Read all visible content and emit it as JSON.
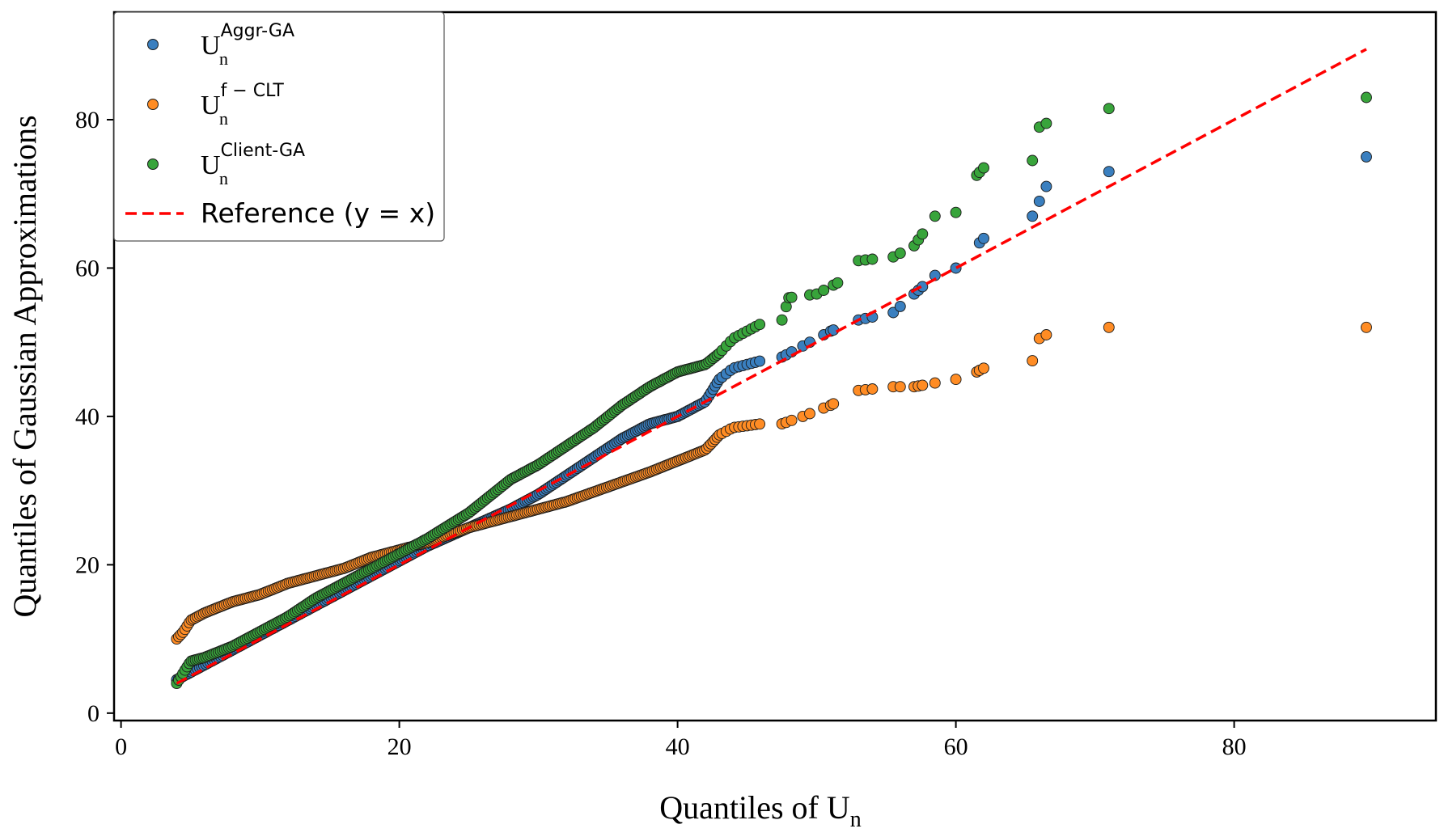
{
  "chart_data": {
    "type": "scatter",
    "title": "",
    "xlabel": "Quantiles of U",
    "xlabel_sub": "n",
    "ylabel": "Quantiles of Gaussian Approximations",
    "xlim": [
      -0.5,
      94.5
    ],
    "ylim": [
      -1,
      94.5
    ],
    "xticks": [
      "0",
      "20",
      "40",
      "60",
      "80"
    ],
    "yticks": [
      "0",
      "20",
      "40",
      "60",
      "80"
    ],
    "grid": false,
    "legend_position": "top-left",
    "reference_line": {
      "name": "Reference (y = x)",
      "label_text": "Reference (y = x)",
      "x": [
        4,
        89.5
      ],
      "y": [
        4,
        89.5
      ],
      "color": "#ff0000",
      "style": "dashed"
    },
    "series": [
      {
        "name": "U_n^Aggr-GA",
        "label_base": "U",
        "label_sup": "Aggr-GA",
        "label_sub": "n",
        "color": "#3a7fbf",
        "anchors_x": [
          4,
          5,
          7,
          10,
          12,
          15,
          18,
          20,
          22,
          25,
          28,
          30,
          32,
          34,
          36,
          38,
          40,
          42,
          43,
          44,
          46,
          47.5,
          49,
          51,
          53,
          55.5,
          57,
          58.5,
          60,
          62,
          65.5,
          66,
          66.5,
          71,
          89.5
        ],
        "anchors_y": [
          4.5,
          5.5,
          7.5,
          10.5,
          12.5,
          15.5,
          18.5,
          20.5,
          22.5,
          25,
          27.5,
          29.5,
          32,
          34.5,
          37,
          39,
          40,
          42,
          45,
          46.5,
          47.5,
          48,
          49.5,
          51.5,
          53,
          54,
          56.5,
          59,
          60,
          64,
          67,
          69,
          71,
          73,
          75
        ]
      },
      {
        "name": "U_n^f-CLT",
        "label_base": "U",
        "label_sup": "f − CLT",
        "label_sub": "n",
        "color": "#ff8c24",
        "anchors_x": [
          4,
          4.5,
          5,
          6,
          8,
          10,
          12,
          14,
          16,
          18,
          20,
          22,
          25,
          28,
          30,
          32,
          35,
          38,
          40,
          42,
          43,
          44,
          46,
          47.5,
          49,
          51,
          53,
          55.5,
          57,
          58.5,
          60,
          61.5,
          62,
          65.5,
          66,
          66.5,
          71,
          89.5
        ],
        "anchors_y": [
          10,
          11,
          12.5,
          13.5,
          15,
          16,
          17.5,
          18.5,
          19.5,
          21,
          22,
          23,
          25,
          26.5,
          27.5,
          28.5,
          30.5,
          32.5,
          34,
          35.5,
          37.5,
          38.5,
          39,
          39,
          40,
          41.5,
          43.5,
          44,
          44,
          44.5,
          45,
          46,
          46.5,
          47.5,
          50.5,
          51,
          52,
          52
        ]
      },
      {
        "name": "U_n^Client-GA",
        "label_base": "U",
        "label_sup": "Client-GA",
        "label_sub": "n",
        "color": "#38a43b",
        "anchors_x": [
          4,
          4.5,
          5,
          6,
          8,
          10,
          12,
          14,
          16,
          18,
          20,
          22,
          25,
          27,
          28,
          30,
          32,
          34,
          36,
          38,
          40,
          42,
          43,
          44,
          46,
          47.5,
          48,
          50,
          51.5,
          53,
          55.5,
          57,
          58.5,
          60,
          61.5,
          62,
          65.5,
          66,
          66.5,
          71,
          89.5
        ],
        "anchors_y": [
          4,
          5.5,
          7,
          7.5,
          9,
          11,
          13,
          15.5,
          17.5,
          19.5,
          21.5,
          23.5,
          27,
          30,
          31.5,
          33.5,
          36,
          38.5,
          41.5,
          44,
          46,
          47,
          48.5,
          50.5,
          52.5,
          53,
          56,
          56.5,
          58,
          61,
          61.5,
          63,
          67,
          67.5,
          72.5,
          73.5,
          74.5,
          79,
          79.5,
          81.5,
          83
        ]
      }
    ]
  }
}
